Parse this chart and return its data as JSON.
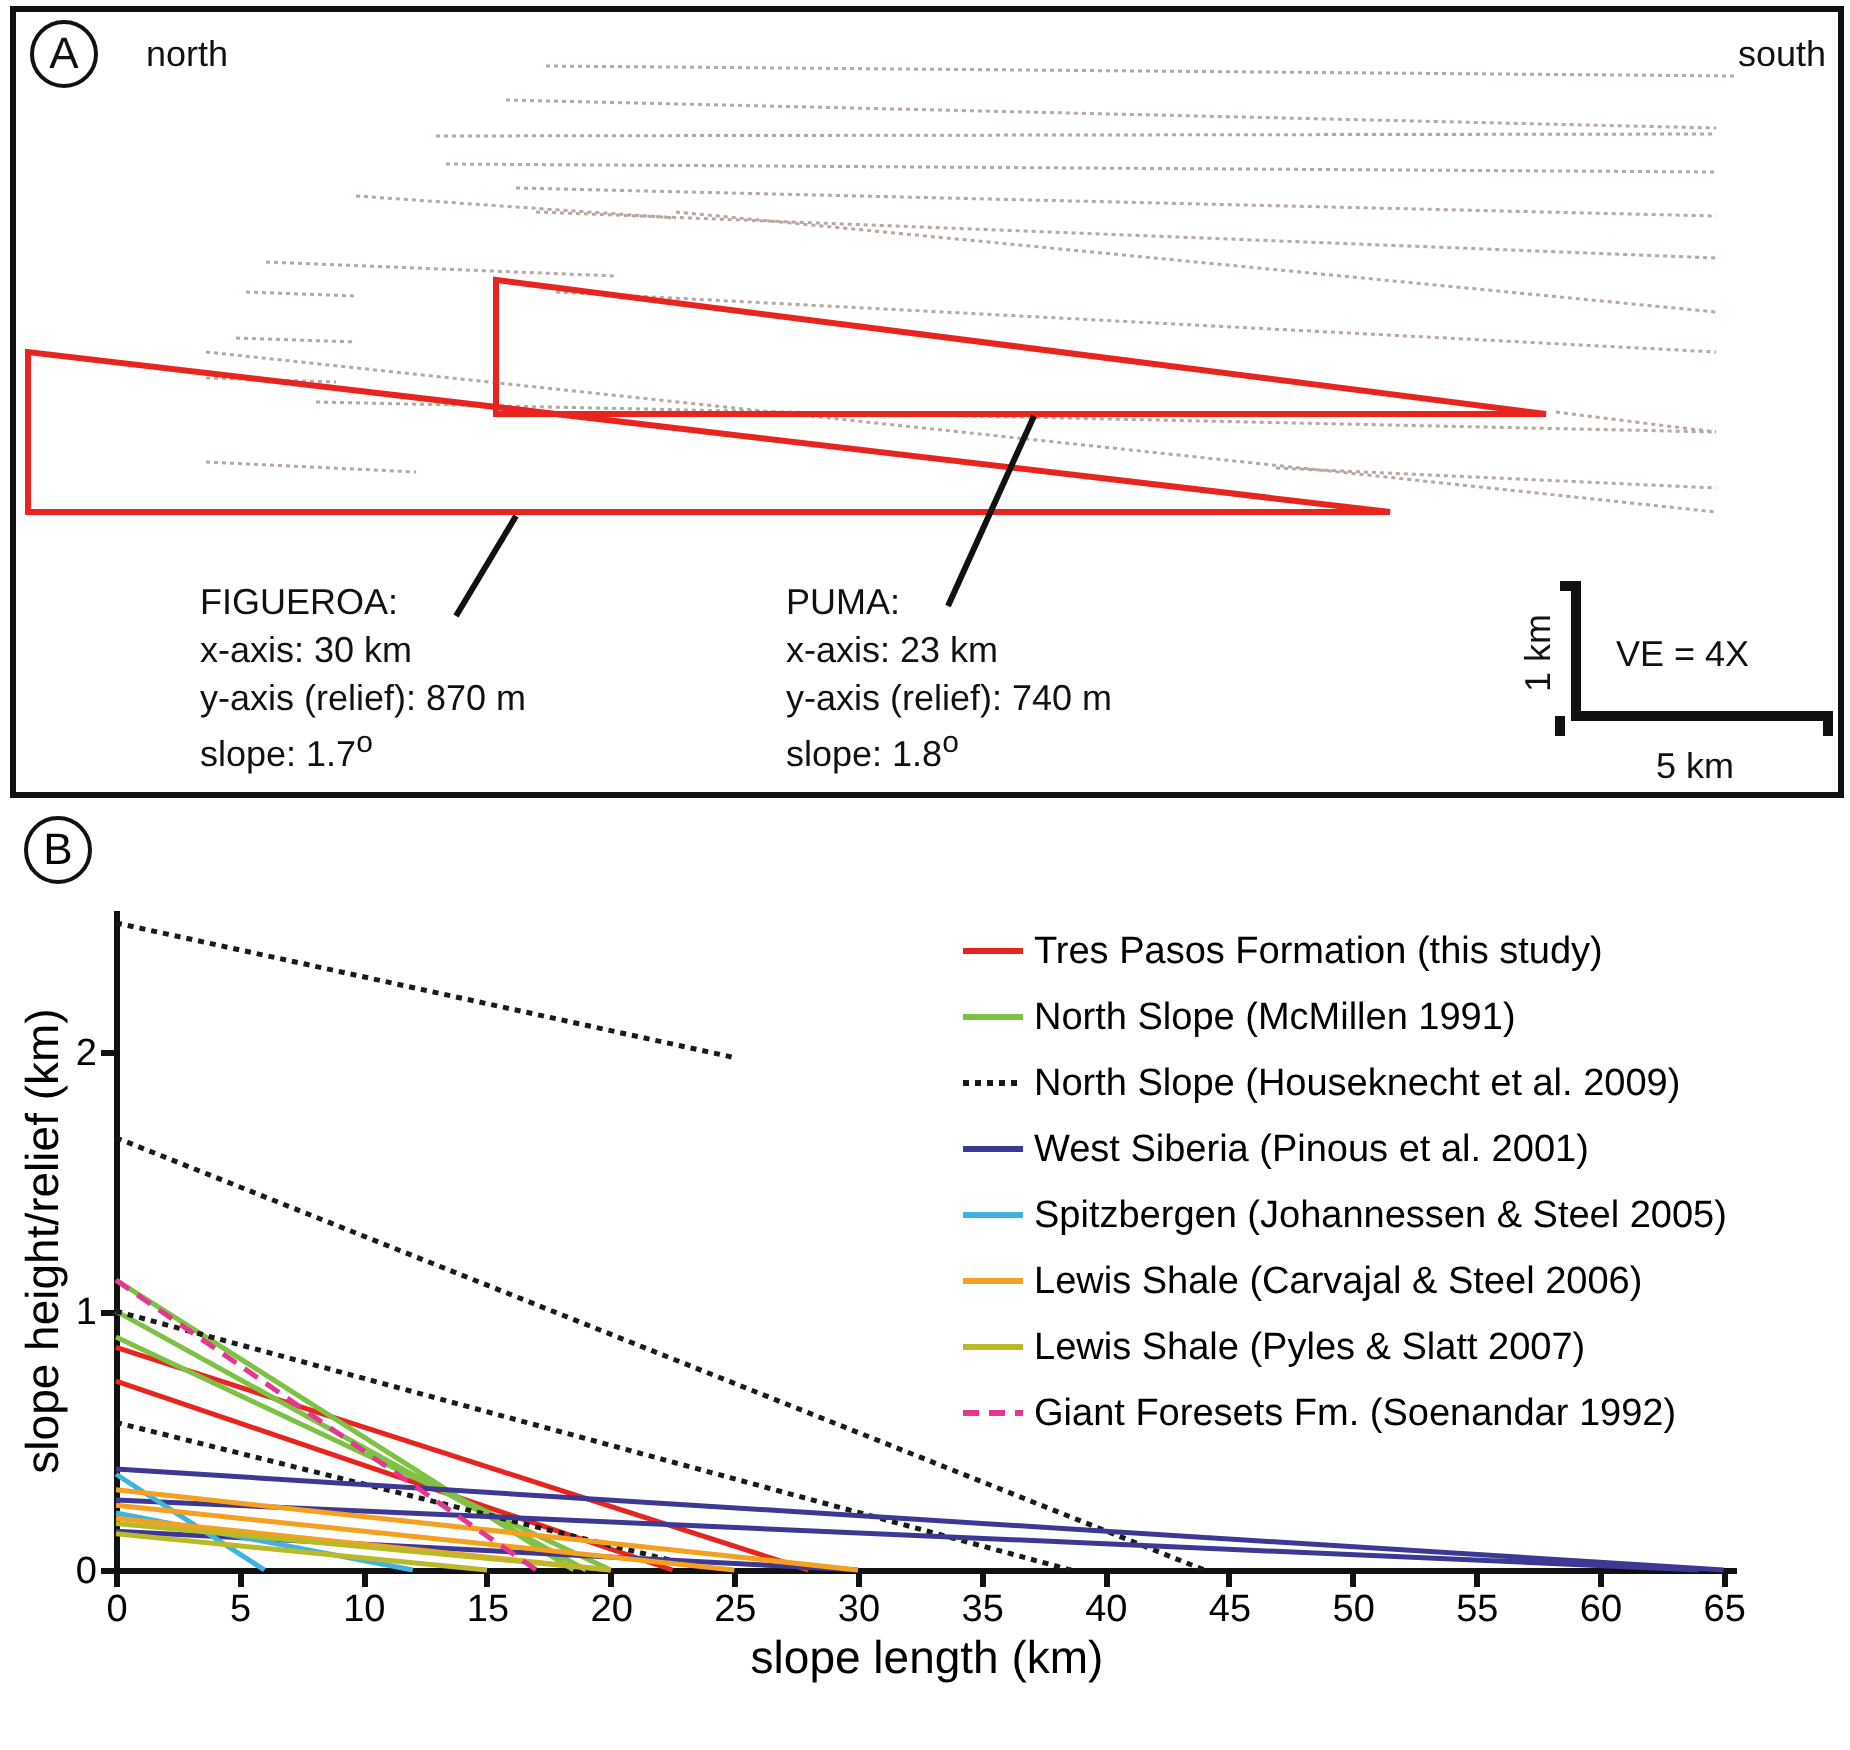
{
  "chart_data": [
    {
      "type": "other",
      "annotations": [
        "A",
        "north",
        "south",
        "FIGUEROA:",
        "x-axis: 30 km",
        "y-axis (relief): 870 m",
        "slope: 1.7$^{o}$",
        "PUMA:",
        "x-axis: 23 km",
        "y-axis (relief): 740 m",
        "slope: 1.8$^{o}$",
        "1 km",
        "VE = 4X",
        "5 km"
      ]
    },
    {
      "type": "line",
      "xlabel": "slope length (km)",
      "ylabel": "slope height/relief (km)",
      "annotations": [
        "B"
      ],
      "xlim": [
        0,
        65.5
      ],
      "ylim": [
        0,
        2.55
      ],
      "xticks": [
        0,
        5,
        10,
        15,
        20,
        25,
        30,
        35,
        40,
        45,
        50,
        55,
        60,
        65
      ],
      "yticks": [
        0,
        1,
        2
      ],
      "grid": false,
      "legend": "top right",
      "series": [
        {
          "name": "Tres Pasos Formation (this study)",
          "color": "#e8241f",
          "line_style": "solid",
          "x": [
            0,
            28,
            null,
            0,
            22.5
          ],
          "values": [
            0.86,
            0,
            null,
            0.73,
            0
          ]
        },
        {
          "name": "North Slope (McMillen 1991)",
          "color": "#7dc242",
          "line_style": "solid",
          "x": [
            0,
            18.5,
            null,
            0,
            19,
            null,
            0,
            20
          ],
          "values": [
            1.12,
            0,
            null,
            1.0,
            0,
            null,
            0.9,
            0
          ]
        },
        {
          "name": "North Slope (Houseknecht et al. 2009)",
          "color": "#1a1a1a",
          "line_style": "dotted",
          "x": [
            0,
            25,
            null,
            0,
            44,
            null,
            0,
            38.6,
            null,
            0,
            24
          ],
          "values": [
            2.5,
            1.98,
            null,
            1.67,
            0,
            null,
            1.0,
            0,
            null,
            0.57,
            0
          ]
        },
        {
          "name": "West Siberia (Pinous et al. 2001)",
          "color": "#3c3893",
          "line_style": "solid",
          "x": [
            0,
            65,
            null,
            0,
            64,
            null,
            0,
            30
          ],
          "values": [
            0.39,
            0,
            null,
            0.27,
            0,
            null,
            0.15,
            0
          ]
        },
        {
          "name": "Spitzbergen (Johannessen & Steel 2005)",
          "color": "#3fb3e0",
          "line_style": "solid",
          "x": [
            0,
            6,
            null,
            0,
            12
          ],
          "values": [
            0.37,
            0,
            null,
            0.22,
            0
          ]
        },
        {
          "name": "Lewis Shale (Carvajal & Steel 2006)",
          "color": "#f4a020",
          "line_style": "solid",
          "x": [
            0,
            30,
            null,
            0,
            25,
            null,
            0,
            20
          ],
          "values": [
            0.31,
            0,
            null,
            0.25,
            0,
            null,
            0.2,
            0
          ]
        },
        {
          "name": "Lewis Shale (Pyles & Slatt 2007)",
          "color": "#b9b92a",
          "line_style": "solid",
          "x": [
            0,
            20,
            null,
            0,
            15
          ],
          "values": [
            0.18,
            0,
            null,
            0.14,
            0
          ]
        },
        {
          "name": "Giant Foresets Fm. (Soenandar 1992)",
          "color": "#e6368f",
          "line_style": "dashed",
          "x": [
            0,
            17
          ],
          "values": [
            1.12,
            0
          ]
        }
      ]
    }
  ]
}
